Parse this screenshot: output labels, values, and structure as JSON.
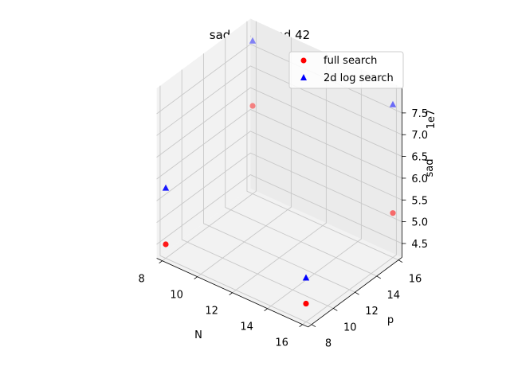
{
  "chart_data": {
    "type": "scatter3d",
    "title": "sad of 40 and 42",
    "xlabel": "N",
    "ylabel": "p",
    "zlabel": "sad",
    "z_offset_label": "1e7",
    "xlim": [
      8,
      16
    ],
    "ylim": [
      8,
      16
    ],
    "zlim": [
      4.5,
      7.7
    ],
    "x_ticks": [
      "8",
      "10",
      "12",
      "14",
      "16"
    ],
    "y_ticks": [
      "8",
      "10",
      "12",
      "14",
      "16"
    ],
    "z_ticks": [
      "4.5",
      "5.0",
      "5.5",
      "6.0",
      "6.5",
      "7.0",
      "7.5"
    ],
    "grid": true,
    "legend_position": "top-right",
    "series": [
      {
        "name": "full search",
        "marker": "circle",
        "color": "#ff0000",
        "points": [
          {
            "x": 8,
            "y": 8,
            "z": 4.5
          },
          {
            "x": 8,
            "y": 16,
            "z": 6.2
          },
          {
            "x": 16,
            "y": 8,
            "z": 4.6
          },
          {
            "x": 16,
            "y": 16,
            "z": 5.2
          }
        ]
      },
      {
        "name": "2d log search",
        "marker": "triangle",
        "color": "#0000ff",
        "points": [
          {
            "x": 8,
            "y": 8,
            "z": 5.8
          },
          {
            "x": 8,
            "y": 16,
            "z": 7.7
          },
          {
            "x": 16,
            "y": 8,
            "z": 5.2
          },
          {
            "x": 16,
            "y": 16,
            "z": 7.7
          }
        ]
      }
    ]
  }
}
